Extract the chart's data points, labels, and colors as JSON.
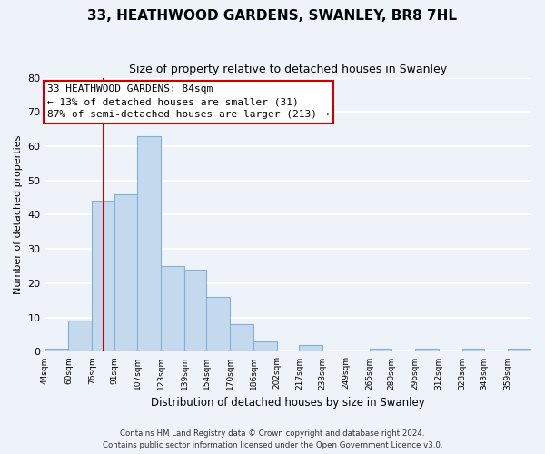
{
  "title": "33, HEATHWOOD GARDENS, SWANLEY, BR8 7HL",
  "subtitle": "Size of property relative to detached houses in Swanley",
  "xlabel": "Distribution of detached houses by size in Swanley",
  "ylabel": "Number of detached properties",
  "bin_labels": [
    "44sqm",
    "60sqm",
    "76sqm",
    "91sqm",
    "107sqm",
    "123sqm",
    "139sqm",
    "154sqm",
    "170sqm",
    "186sqm",
    "202sqm",
    "217sqm",
    "233sqm",
    "249sqm",
    "265sqm",
    "280sqm",
    "296sqm",
    "312sqm",
    "328sqm",
    "343sqm",
    "359sqm"
  ],
  "bin_edges": [
    44,
    60,
    76,
    91,
    107,
    123,
    139,
    154,
    170,
    186,
    202,
    217,
    233,
    249,
    265,
    280,
    296,
    312,
    328,
    343,
    359,
    375
  ],
  "counts": [
    1,
    9,
    44,
    46,
    63,
    25,
    24,
    16,
    8,
    3,
    0,
    2,
    0,
    0,
    1,
    0,
    1,
    0,
    1,
    0,
    1
  ],
  "bar_color": "#c5d9ee",
  "bar_edge_color": "#7fb3d6",
  "vline_x": 84,
  "vline_color": "#cc0000",
  "annotation_text": "33 HEATHWOOD GARDENS: 84sqm\n← 13% of detached houses are smaller (31)\n87% of semi-detached houses are larger (213) →",
  "annotation_box_color": "#ffffff",
  "annotation_box_edge": "#cc0000",
  "ylim": [
    0,
    80
  ],
  "yticks": [
    0,
    10,
    20,
    30,
    40,
    50,
    60,
    70,
    80
  ],
  "footer1": "Contains HM Land Registry data © Crown copyright and database right 2024.",
  "footer2": "Contains public sector information licensed under the Open Government Licence v3.0.",
  "background_color": "#eef2f9",
  "grid_color": "#ffffff"
}
